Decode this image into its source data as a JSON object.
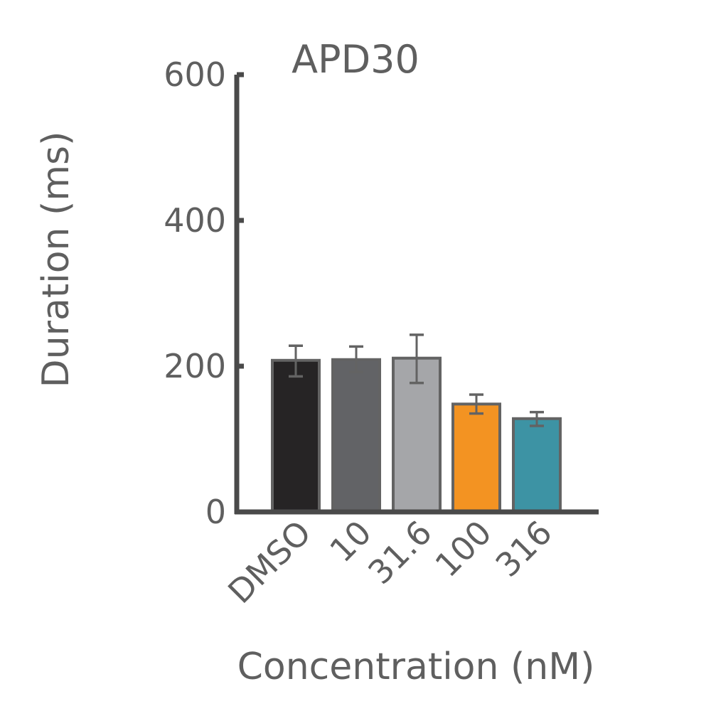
{
  "chart_data": {
    "type": "bar",
    "title": "APD30",
    "xlabel": "Concentration (nM)",
    "ylabel": "Duration (ms)",
    "categories": [
      "DMSO",
      "10",
      "31.6",
      "100",
      "316"
    ],
    "values": [
      208,
      209,
      211,
      148,
      128
    ],
    "error_high": [
      228,
      227,
      243,
      161,
      137
    ],
    "error_low": [
      186,
      192,
      177,
      135,
      118
    ],
    "ylim": [
      0,
      600
    ],
    "yticks": [
      0,
      200,
      400,
      600
    ],
    "colors": [
      "#262425",
      "#626366",
      "#a5a6a9",
      "#f39322",
      "#3d93a4"
    ],
    "edge_color": "#636363",
    "axis_color": "#4a4a4a",
    "grid": false,
    "legend": "none"
  }
}
